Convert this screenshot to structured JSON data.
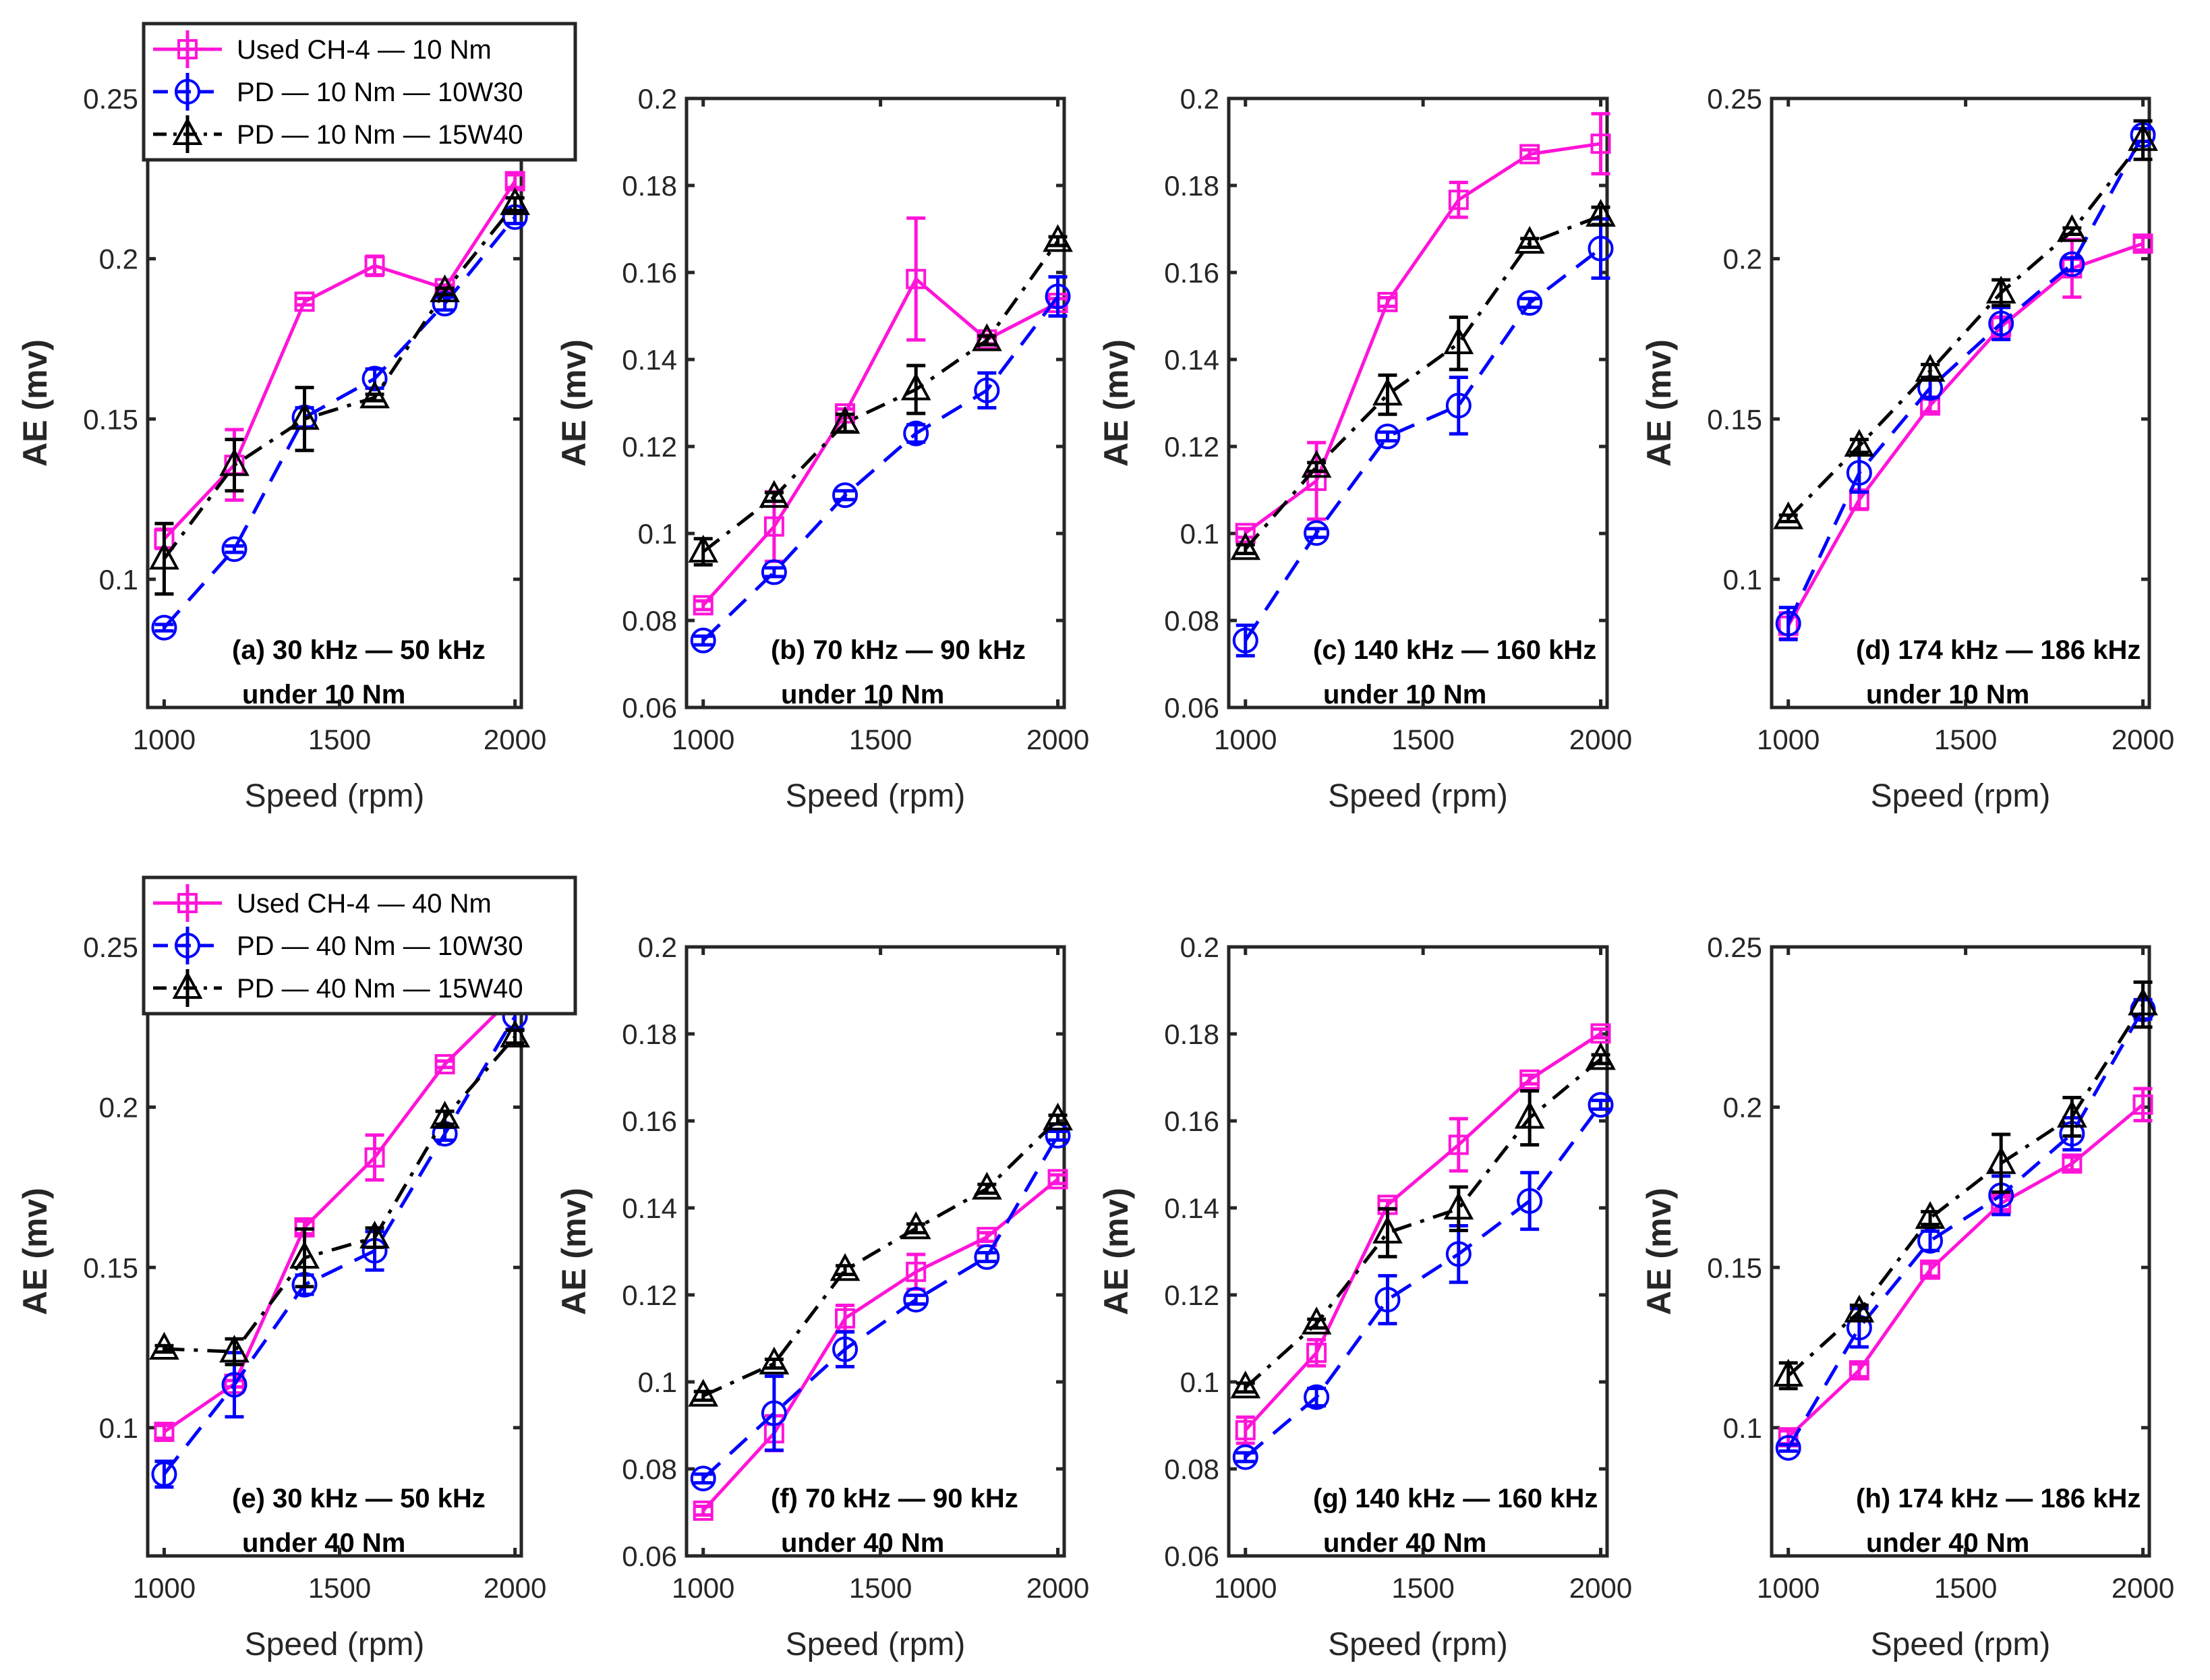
{
  "chart_data": [
    {
      "type": "line",
      "id": "a",
      "annotation": "(a) 30 kHz — 50 kHz",
      "subtitle": "under 10 Nm",
      "xlabel": "Speed (rpm)",
      "ylabel": "AE (mv)",
      "x": [
        1000,
        1200,
        1400,
        1600,
        1800,
        2000
      ],
      "xlim": [
        953,
        2018
      ],
      "xticks": [
        "1000",
        "1500",
        "2000"
      ],
      "ylim": [
        0.06,
        0.25
      ],
      "yticks": [
        "0.1",
        "0.15",
        "0.2",
        "0.25"
      ],
      "legend": [
        "Used CH-4 — 10 Nm",
        "PD — 10 Nm — 10W30",
        "PD — 10 Nm — 15W40"
      ],
      "series": [
        {
          "name": "Used CH-4 — 10 Nm",
          "values": [
            0.1126,
            0.1357,
            0.1866,
            0.1978,
            0.1908,
            0.2242
          ],
          "errors": [
            0.003,
            0.011,
            0.001,
            0.003,
            0.001,
            0.002
          ]
        },
        {
          "name": "PD — 10 Nm — 10W30",
          "values": [
            0.0849,
            0.1094,
            0.1505,
            0.1626,
            0.186,
            0.213
          ],
          "errors": [
            0.001,
            0.001,
            0.003,
            0.003,
            0.002,
            0.002
          ]
        },
        {
          "name": "PD — 10 Nm — 15W40",
          "values": [
            0.1064,
            0.1356,
            0.15,
            0.1567,
            0.1898,
            0.217
          ],
          "errors": [
            0.011,
            0.008,
            0.0098,
            0.001,
            0.001,
            0.002
          ]
        }
      ]
    },
    {
      "type": "line",
      "id": "b",
      "annotation": "(b) 70 kHz — 90 kHz",
      "subtitle": "under 10 Nm",
      "xlabel": "Speed (rpm)",
      "ylabel": "AE (mv)",
      "x": [
        1000,
        1200,
        1400,
        1600,
        1800,
        2000
      ],
      "xlim": [
        953,
        2018
      ],
      "xticks": [
        "1000",
        "1500",
        "2000"
      ],
      "ylim": [
        0.06,
        0.2
      ],
      "yticks": [
        "0.06",
        "0.08",
        "0.1",
        "0.12",
        "0.14",
        "0.16",
        "0.18",
        "0.2"
      ],
      "series": [
        {
          "name": "Used CH-4 — 10 Nm",
          "values": [
            0.0835,
            0.1016,
            0.1276,
            0.1585,
            0.1446,
            0.153
          ],
          "errors": [
            0.001,
            0.008,
            0.001,
            0.014,
            0.001,
            0.001
          ]
        },
        {
          "name": "PD — 10 Nm — 10W30",
          "values": [
            0.0754,
            0.0911,
            0.1088,
            0.123,
            0.1329,
            0.1545
          ],
          "errors": [
            0.001,
            0.001,
            0.001,
            0.002,
            0.004,
            0.0045
          ]
        },
        {
          "name": "PD — 10 Nm — 15W40",
          "values": [
            0.0958,
            0.1084,
            0.1254,
            0.1331,
            0.1444,
            0.1672
          ],
          "errors": [
            0.003,
            0.001,
            0.002,
            0.0055,
            0.001,
            0.001
          ]
        }
      ]
    },
    {
      "type": "line",
      "id": "c",
      "annotation": "(c) 140 kHz — 160 kHz",
      "subtitle": "under 10 Nm",
      "xlabel": "Speed (rpm)",
      "ylabel": "AE (mv)",
      "x": [
        1000,
        1200,
        1400,
        1600,
        1800,
        2000
      ],
      "xlim": [
        953,
        2018
      ],
      "xticks": [
        "1000",
        "1500",
        "2000"
      ],
      "ylim": [
        0.06,
        0.2
      ],
      "yticks": [
        "0.06",
        "0.08",
        "0.1",
        "0.12",
        "0.14",
        "0.16",
        "0.18",
        "0.2"
      ],
      "series": [
        {
          "name": "Used CH-4 — 10 Nm",
          "values": [
            0.1001,
            0.1121,
            0.1532,
            0.1767,
            0.1872,
            0.1896
          ],
          "errors": [
            0.001,
            0.0088,
            0.001,
            0.004,
            0.001,
            0.0069
          ]
        },
        {
          "name": "PD — 10 Nm — 10W30",
          "values": [
            0.0754,
            0.1001,
            0.1223,
            0.1294,
            0.153,
            0.1655
          ],
          "errors": [
            0.0035,
            0.001,
            0.001,
            0.0065,
            0.001,
            0.0068
          ]
        },
        {
          "name": "PD — 10 Nm — 15W40",
          "values": [
            0.0964,
            0.1153,
            0.1319,
            0.1437,
            0.1668,
            0.173
          ],
          "errors": [
            0.001,
            0.001,
            0.0045,
            0.006,
            0.001,
            0.002
          ]
        }
      ]
    },
    {
      "type": "line",
      "id": "d",
      "annotation": "(d) 174 kHz — 186 kHz",
      "subtitle": "under 10 Nm",
      "xlabel": "Speed (rpm)",
      "ylabel": "AE (mv)",
      "x": [
        1000,
        1200,
        1400,
        1600,
        1800,
        2000
      ],
      "xlim": [
        953,
        2018
      ],
      "xticks": [
        "1000",
        "1500",
        "2000"
      ],
      "ylim": [
        0.06,
        0.25
      ],
      "yticks": [
        "0.1",
        "0.15",
        "0.2",
        "0.25"
      ],
      "series": [
        {
          "name": "Used CH-4 — 10 Nm",
          "values": [
            0.0855,
            0.1248,
            0.1542,
            0.1788,
            0.197,
            0.2047
          ],
          "errors": [
            0.004,
            0.003,
            0.002,
            0.003,
            0.009,
            0.002
          ]
        },
        {
          "name": "PD — 10 Nm — 10W30",
          "values": [
            0.0862,
            0.1332,
            0.1597,
            0.1798,
            0.1983,
            0.2386
          ],
          "errors": [
            0.005,
            0.006,
            0.003,
            0.005,
            0.002,
            0.002
          ]
        },
        {
          "name": "PD — 10 Nm — 15W40",
          "values": [
            0.119,
            0.1416,
            0.165,
            0.1894,
            0.2086,
            0.237
          ],
          "errors": [
            0.001,
            0.002,
            0.002,
            0.004,
            0.001,
            0.006
          ]
        }
      ]
    },
    {
      "type": "line",
      "id": "e",
      "annotation": "(e) 30 kHz — 50 kHz",
      "subtitle": "under 40 Nm",
      "xlabel": "Speed (rpm)",
      "ylabel": "AE (mv)",
      "x": [
        1000,
        1200,
        1400,
        1600,
        1800,
        2000
      ],
      "xlim": [
        953,
        2018
      ],
      "xticks": [
        "1000",
        "1500",
        "2000"
      ],
      "ylim": [
        0.06,
        0.25
      ],
      "yticks": [
        "0.1",
        "0.15",
        "0.2",
        "0.25"
      ],
      "legend": [
        "Used CH-4 — 40 Nm",
        "PD — 40 Nm — 10W30",
        "PD — 40 Nm — 15W40"
      ],
      "series": [
        {
          "name": "Used CH-4 — 40 Nm",
          "values": [
            0.0987,
            0.1137,
            0.1625,
            0.1843,
            0.2134,
            0.235
          ],
          "errors": [
            0.002,
            0.001,
            0.002,
            0.007,
            0.001,
            0.002
          ]
        },
        {
          "name": "PD — 40 Nm — 10W30",
          "values": [
            0.0855,
            0.1134,
            0.1446,
            0.1552,
            0.1917,
            0.2283
          ],
          "errors": [
            0.004,
            0.01,
            0.003,
            0.006,
            0.002,
            0.004
          ]
        },
        {
          "name": "PD — 40 Nm — 15W40",
          "values": [
            0.1246,
            0.1237,
            0.153,
            0.1593,
            0.1967,
            0.222
          ],
          "errors": [
            0.001,
            0.004,
            0.009,
            0.003,
            0.002,
            0.002
          ]
        }
      ]
    },
    {
      "type": "line",
      "id": "f",
      "annotation": "(f) 70 kHz — 90 kHz",
      "subtitle": "under 40 Nm",
      "xlabel": "Speed (rpm)",
      "ylabel": "AE (mv)",
      "x": [
        1000,
        1200,
        1400,
        1600,
        1800,
        2000
      ],
      "xlim": [
        953,
        2018
      ],
      "xticks": [
        "1000",
        "1500",
        "2000"
      ],
      "ylim": [
        0.06,
        0.2
      ],
      "yticks": [
        "0.06",
        "0.08",
        "0.1",
        "0.12",
        "0.14",
        "0.16",
        "0.18",
        "0.2"
      ],
      "series": [
        {
          "name": "Used CH-4 — 40 Nm",
          "values": [
            0.0704,
            0.0882,
            0.1146,
            0.1253,
            0.1333,
            0.1466
          ],
          "errors": [
            0.001,
            0.004,
            0.003,
            0.004,
            0.001,
            0.001
          ]
        },
        {
          "name": "PD — 40 Nm — 10W30",
          "values": [
            0.0778,
            0.0928,
            0.1075,
            0.1189,
            0.1287,
            0.1566
          ],
          "errors": [
            0.001,
            0.0085,
            0.004,
            0.001,
            0.001,
            0.001
          ]
        },
        {
          "name": "PD — 40 Nm — 15W40",
          "values": [
            0.0968,
            0.1042,
            0.1257,
            0.1353,
            0.1444,
            0.1603
          ],
          "errors": [
            0.001,
            0.001,
            0.001,
            0.001,
            0.001,
            0.001
          ]
        }
      ]
    },
    {
      "type": "line",
      "id": "g",
      "annotation": "(g) 140 kHz — 160 kHz",
      "subtitle": "under 40 Nm",
      "xlabel": "Speed (rpm)",
      "ylabel": "AE (mv)",
      "x": [
        1000,
        1200,
        1400,
        1600,
        1800,
        2000
      ],
      "xlim": [
        953,
        2018
      ],
      "xticks": [
        "1000",
        "1500",
        "2000"
      ],
      "ylim": [
        0.06,
        0.2
      ],
      "yticks": [
        "0.06",
        "0.08",
        "0.1",
        "0.12",
        "0.14",
        "0.16",
        "0.18",
        "0.2"
      ],
      "series": [
        {
          "name": "Used CH-4 — 40 Nm",
          "values": [
            0.0889,
            0.1067,
            0.1407,
            0.1545,
            0.1695,
            0.1801
          ],
          "errors": [
            0.003,
            0.003,
            0.001,
            0.006,
            0.001,
            0.001
          ]
        },
        {
          "name": "PD — 40 Nm — 10W30",
          "values": [
            0.0827,
            0.0965,
            0.1189,
            0.1294,
            0.1416,
            0.1637
          ],
          "errors": [
            0.001,
            0.002,
            0.0055,
            0.0065,
            0.0065,
            0.001
          ]
        },
        {
          "name": "PD — 40 Nm — 15W40",
          "values": [
            0.0987,
            0.1134,
            0.1343,
            0.1398,
            0.1607,
            0.1742
          ],
          "errors": [
            0.001,
            0.001,
            0.0055,
            0.005,
            0.0062,
            0.001
          ]
        }
      ]
    },
    {
      "type": "line",
      "id": "h",
      "annotation": "(h) 174 kHz — 186 kHz",
      "subtitle": "under 40 Nm",
      "xlabel": "Speed (rpm)",
      "ylabel": "AE (mv)",
      "x": [
        1000,
        1200,
        1400,
        1600,
        1800,
        2000
      ],
      "xlim": [
        953,
        2018
      ],
      "xticks": [
        "1000",
        "1500",
        "2000"
      ],
      "ylim": [
        0.06,
        0.25
      ],
      "yticks": [
        "0.1",
        "0.15",
        "0.2",
        "0.25"
      ],
      "series": [
        {
          "name": "Used CH-4 — 40 Nm",
          "values": [
            0.097,
            0.1179,
            0.1493,
            0.17,
            0.1824,
            0.2008
          ],
          "errors": [
            0.002,
            0.002,
            0.002,
            0.002,
            0.002,
            0.005
          ]
        },
        {
          "name": "PD — 40 Nm — 10W30",
          "values": [
            0.0937,
            0.1312,
            0.1583,
            0.1725,
            0.1917,
            0.2305
          ],
          "errors": [
            0.001,
            0.006,
            0.003,
            0.006,
            0.005,
            0.003
          ]
        },
        {
          "name": "PD — 40 Nm — 15W40",
          "values": [
            0.1162,
            0.1362,
            0.1654,
            0.1825,
            0.197,
            0.232
          ],
          "errors": [
            0.004,
            0.002,
            0.002,
            0.009,
            0.006,
            0.007
          ]
        }
      ]
    }
  ],
  "style": {
    "colors": [
      "#FF14D8",
      "#0000FF",
      "#000000"
    ],
    "markers": [
      "square",
      "circle",
      "triangle"
    ],
    "lines": [
      "solid",
      "dashed",
      "dash-dot"
    ]
  }
}
